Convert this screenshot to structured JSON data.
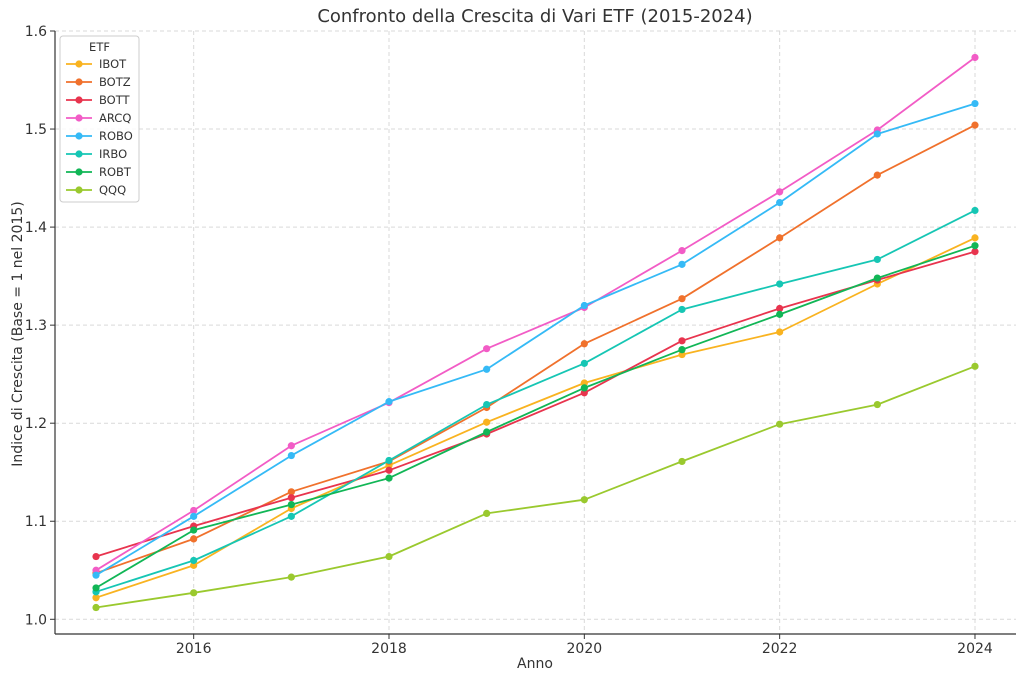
{
  "chart_data": {
    "type": "line",
    "title": "Confronto della Crescita di Vari ETF (2015-2024)",
    "xlabel": "Anno",
    "ylabel": "Indice di Crescita (Base = 1 nel 2015)",
    "x": [
      2015,
      2016,
      2017,
      2018,
      2019,
      2020,
      2021,
      2022,
      2023,
      2024
    ],
    "xlim": [
      2014.58,
      2024.42
    ],
    "ylim": [
      0.985,
      1.6
    ],
    "xticks": [
      2016,
      2018,
      2020,
      2022,
      2024
    ],
    "yticks": [
      1.0,
      1.1,
      1.2,
      1.3,
      1.4,
      1.5,
      1.6
    ],
    "ytick_labels": [
      "1.0",
      "1.1",
      "1.2",
      "1.3",
      "1.4",
      "1.5",
      "1.6"
    ],
    "grid": true,
    "legend": {
      "title": "ETF",
      "placement": "top-left"
    },
    "series": [
      {
        "name": "IBOT",
        "color": "#f9b320",
        "values": [
          1.022,
          1.055,
          1.113,
          1.157,
          1.201,
          1.241,
          1.27,
          1.293,
          1.342,
          1.389
        ]
      },
      {
        "name": "BOTZ",
        "color": "#f0712c",
        "values": [
          1.047,
          1.082,
          1.13,
          1.161,
          1.216,
          1.281,
          1.327,
          1.389,
          1.453,
          1.504
        ]
      },
      {
        "name": "BOTT",
        "color": "#e8344e",
        "values": [
          1.064,
          1.095,
          1.124,
          1.152,
          1.189,
          1.231,
          1.284,
          1.317,
          1.346,
          1.375
        ]
      },
      {
        "name": "ARCQ",
        "color": "#f25cc6",
        "values": [
          1.05,
          1.111,
          1.177,
          1.221,
          1.276,
          1.318,
          1.376,
          1.436,
          1.499,
          1.573
        ]
      },
      {
        "name": "ROBO",
        "color": "#35baf6",
        "values": [
          1.045,
          1.105,
          1.167,
          1.222,
          1.255,
          1.32,
          1.362,
          1.425,
          1.495,
          1.526
        ]
      },
      {
        "name": "IRBO",
        "color": "#16c6b4",
        "values": [
          1.028,
          1.06,
          1.105,
          1.162,
          1.219,
          1.261,
          1.316,
          1.342,
          1.367,
          1.417
        ]
      },
      {
        "name": "ROBT",
        "color": "#11b656",
        "values": [
          1.032,
          1.091,
          1.117,
          1.144,
          1.191,
          1.236,
          1.275,
          1.311,
          1.348,
          1.381
        ]
      },
      {
        "name": "QQQ",
        "color": "#9ac92e",
        "values": [
          1.012,
          1.027,
          1.043,
          1.064,
          1.108,
          1.122,
          1.161,
          1.199,
          1.219,
          1.258
        ]
      }
    ]
  }
}
